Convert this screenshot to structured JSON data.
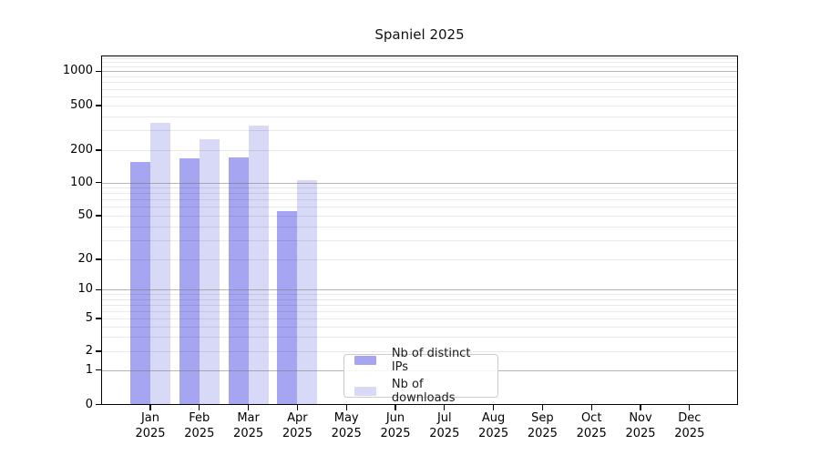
{
  "chart_data": {
    "type": "bar",
    "title": "Spaniel 2025",
    "categories": [
      "Jan 2025",
      "Feb 2025",
      "Mar 2025",
      "Apr 2025",
      "May 2025",
      "Jun 2025",
      "Jul 2025",
      "Aug 2025",
      "Sep 2025",
      "Oct 2025",
      "Nov 2025",
      "Dec 2025"
    ],
    "series": [
      {
        "name": "Nb of distinct IPs",
        "color": "#a5a5f2",
        "values": [
          155,
          167,
          170,
          55,
          null,
          null,
          null,
          null,
          null,
          null,
          null,
          null
        ]
      },
      {
        "name": "Nb of downloads",
        "color": "#d8d8f7",
        "values": [
          350,
          250,
          330,
          105,
          null,
          null,
          null,
          null,
          null,
          null,
          null,
          null
        ]
      }
    ],
    "xlabel": "",
    "ylabel": "",
    "yscale": "symlog",
    "y_ticks": [
      0,
      1,
      2,
      5,
      10,
      20,
      50,
      100,
      200,
      500,
      1000
    ],
    "ylim": [
      0,
      1350
    ],
    "grid": "horizontal; gray major lines at 1,10,100,1000; faint minor lines between",
    "legend_position": "inside-bottom-center"
  },
  "legend": {
    "items": [
      {
        "label": "Nb of distinct IPs"
      },
      {
        "label": "Nb of downloads"
      }
    ]
  },
  "colors": {
    "bar_distinct_ips": "#a5a5f2",
    "bar_downloads": "#d8d8f7",
    "grid_major": "#b3b3b3",
    "grid_minor": "#e8e8e8",
    "spine": "#000000",
    "legend_border": "#cccccc",
    "text": "#111111"
  }
}
